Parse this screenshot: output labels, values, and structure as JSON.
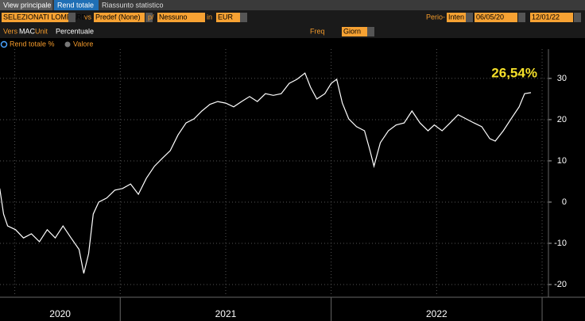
{
  "tabs": [
    "View principale",
    "Rend totale",
    "Riassunto statistico"
  ],
  "toolbar": {
    "security": "SELEZIONATI LOMBARD",
    "vs_label": "vs",
    "benchmark": "Predef (None)",
    "per_label": "p/",
    "per": "Nessuno",
    "in_label": "in",
    "currency": "EUR",
    "period_label": "Perio-",
    "period": "Inten",
    "start": "06/05/20",
    "end": "12/01/22",
    "vers_label": "Vers",
    "vers": "MAC",
    "unit_label": "Unit",
    "unit": "Percentuale",
    "freq_label": "Freq",
    "freq": "Giorn"
  },
  "legend": [
    "Rend totale %",
    "Valore"
  ],
  "chart_data": {
    "type": "line",
    "annotation": "26,54%",
    "series": [
      {
        "name": "Rend totale %",
        "color": "#ffffff",
        "x": [
          2020.429,
          2020.447,
          2020.466,
          2020.504,
          2020.541,
          2020.579,
          2020.617,
          2020.654,
          2020.692,
          2020.729,
          2020.767,
          2020.805,
          2020.827,
          2020.85,
          2020.872,
          2020.898,
          2020.936,
          2020.974,
          2021.011,
          2021.049,
          2021.086,
          2021.124,
          2021.162,
          2021.199,
          2021.237,
          2021.274,
          2021.312,
          2021.35,
          2021.387,
          2021.425,
          2021.462,
          2021.5,
          2021.538,
          2021.575,
          2021.613,
          2021.65,
          2021.688,
          2021.726,
          2021.763,
          2021.801,
          2021.838,
          2021.876,
          2021.902,
          2021.932,
          2021.97,
          2022.0,
          2022.026,
          2022.053,
          2022.083,
          2022.12,
          2022.158,
          2022.184,
          2022.203,
          2022.233,
          2022.271,
          2022.308,
          2022.346,
          2022.383,
          2022.421,
          2022.459,
          2022.489,
          2022.526,
          2022.564,
          2022.602,
          2022.639,
          2022.677,
          2022.714,
          2022.752,
          2022.778,
          2022.816,
          2022.853,
          2022.891,
          2022.917,
          2022.947
        ],
        "values": [
          3.3,
          -2.9,
          -5.8,
          -6.7,
          -8.7,
          -7.7,
          -9.6,
          -6.7,
          -8.7,
          -5.8,
          -8.7,
          -11.5,
          -17.3,
          -12.5,
          -2.9,
          0,
          1,
          2.9,
          3.3,
          4.4,
          1.9,
          5.8,
          8.7,
          10.6,
          12.5,
          16.3,
          19.2,
          20.2,
          22.1,
          23.7,
          24.4,
          24,
          23.1,
          24.4,
          25.6,
          24.4,
          26.3,
          25.9,
          26.3,
          28.8,
          29.8,
          31.3,
          27.9,
          25,
          26.3,
          28.8,
          29.8,
          24,
          20.2,
          18.3,
          17.3,
          12.5,
          8.7,
          14.4,
          17.3,
          18.7,
          19.2,
          22.1,
          19.2,
          17.3,
          18.7,
          17.3,
          19.2,
          21.2,
          20.2,
          19.2,
          18.3,
          15.4,
          14.8,
          17.3,
          20.2,
          23.1,
          26.3,
          26.54
        ]
      }
    ],
    "xlim": [
      2020.43,
      2023.03
    ],
    "xticks": [
      2020.5,
      2021,
      2021.5,
      2022,
      2022.5,
      2023
    ],
    "year_labels": [
      "2020",
      "2021",
      "2022"
    ],
    "ylim": [
      -22.5,
      37.1
    ],
    "yticks": [
      -20,
      -10,
      0,
      10,
      20,
      30
    ],
    "grid": true
  }
}
